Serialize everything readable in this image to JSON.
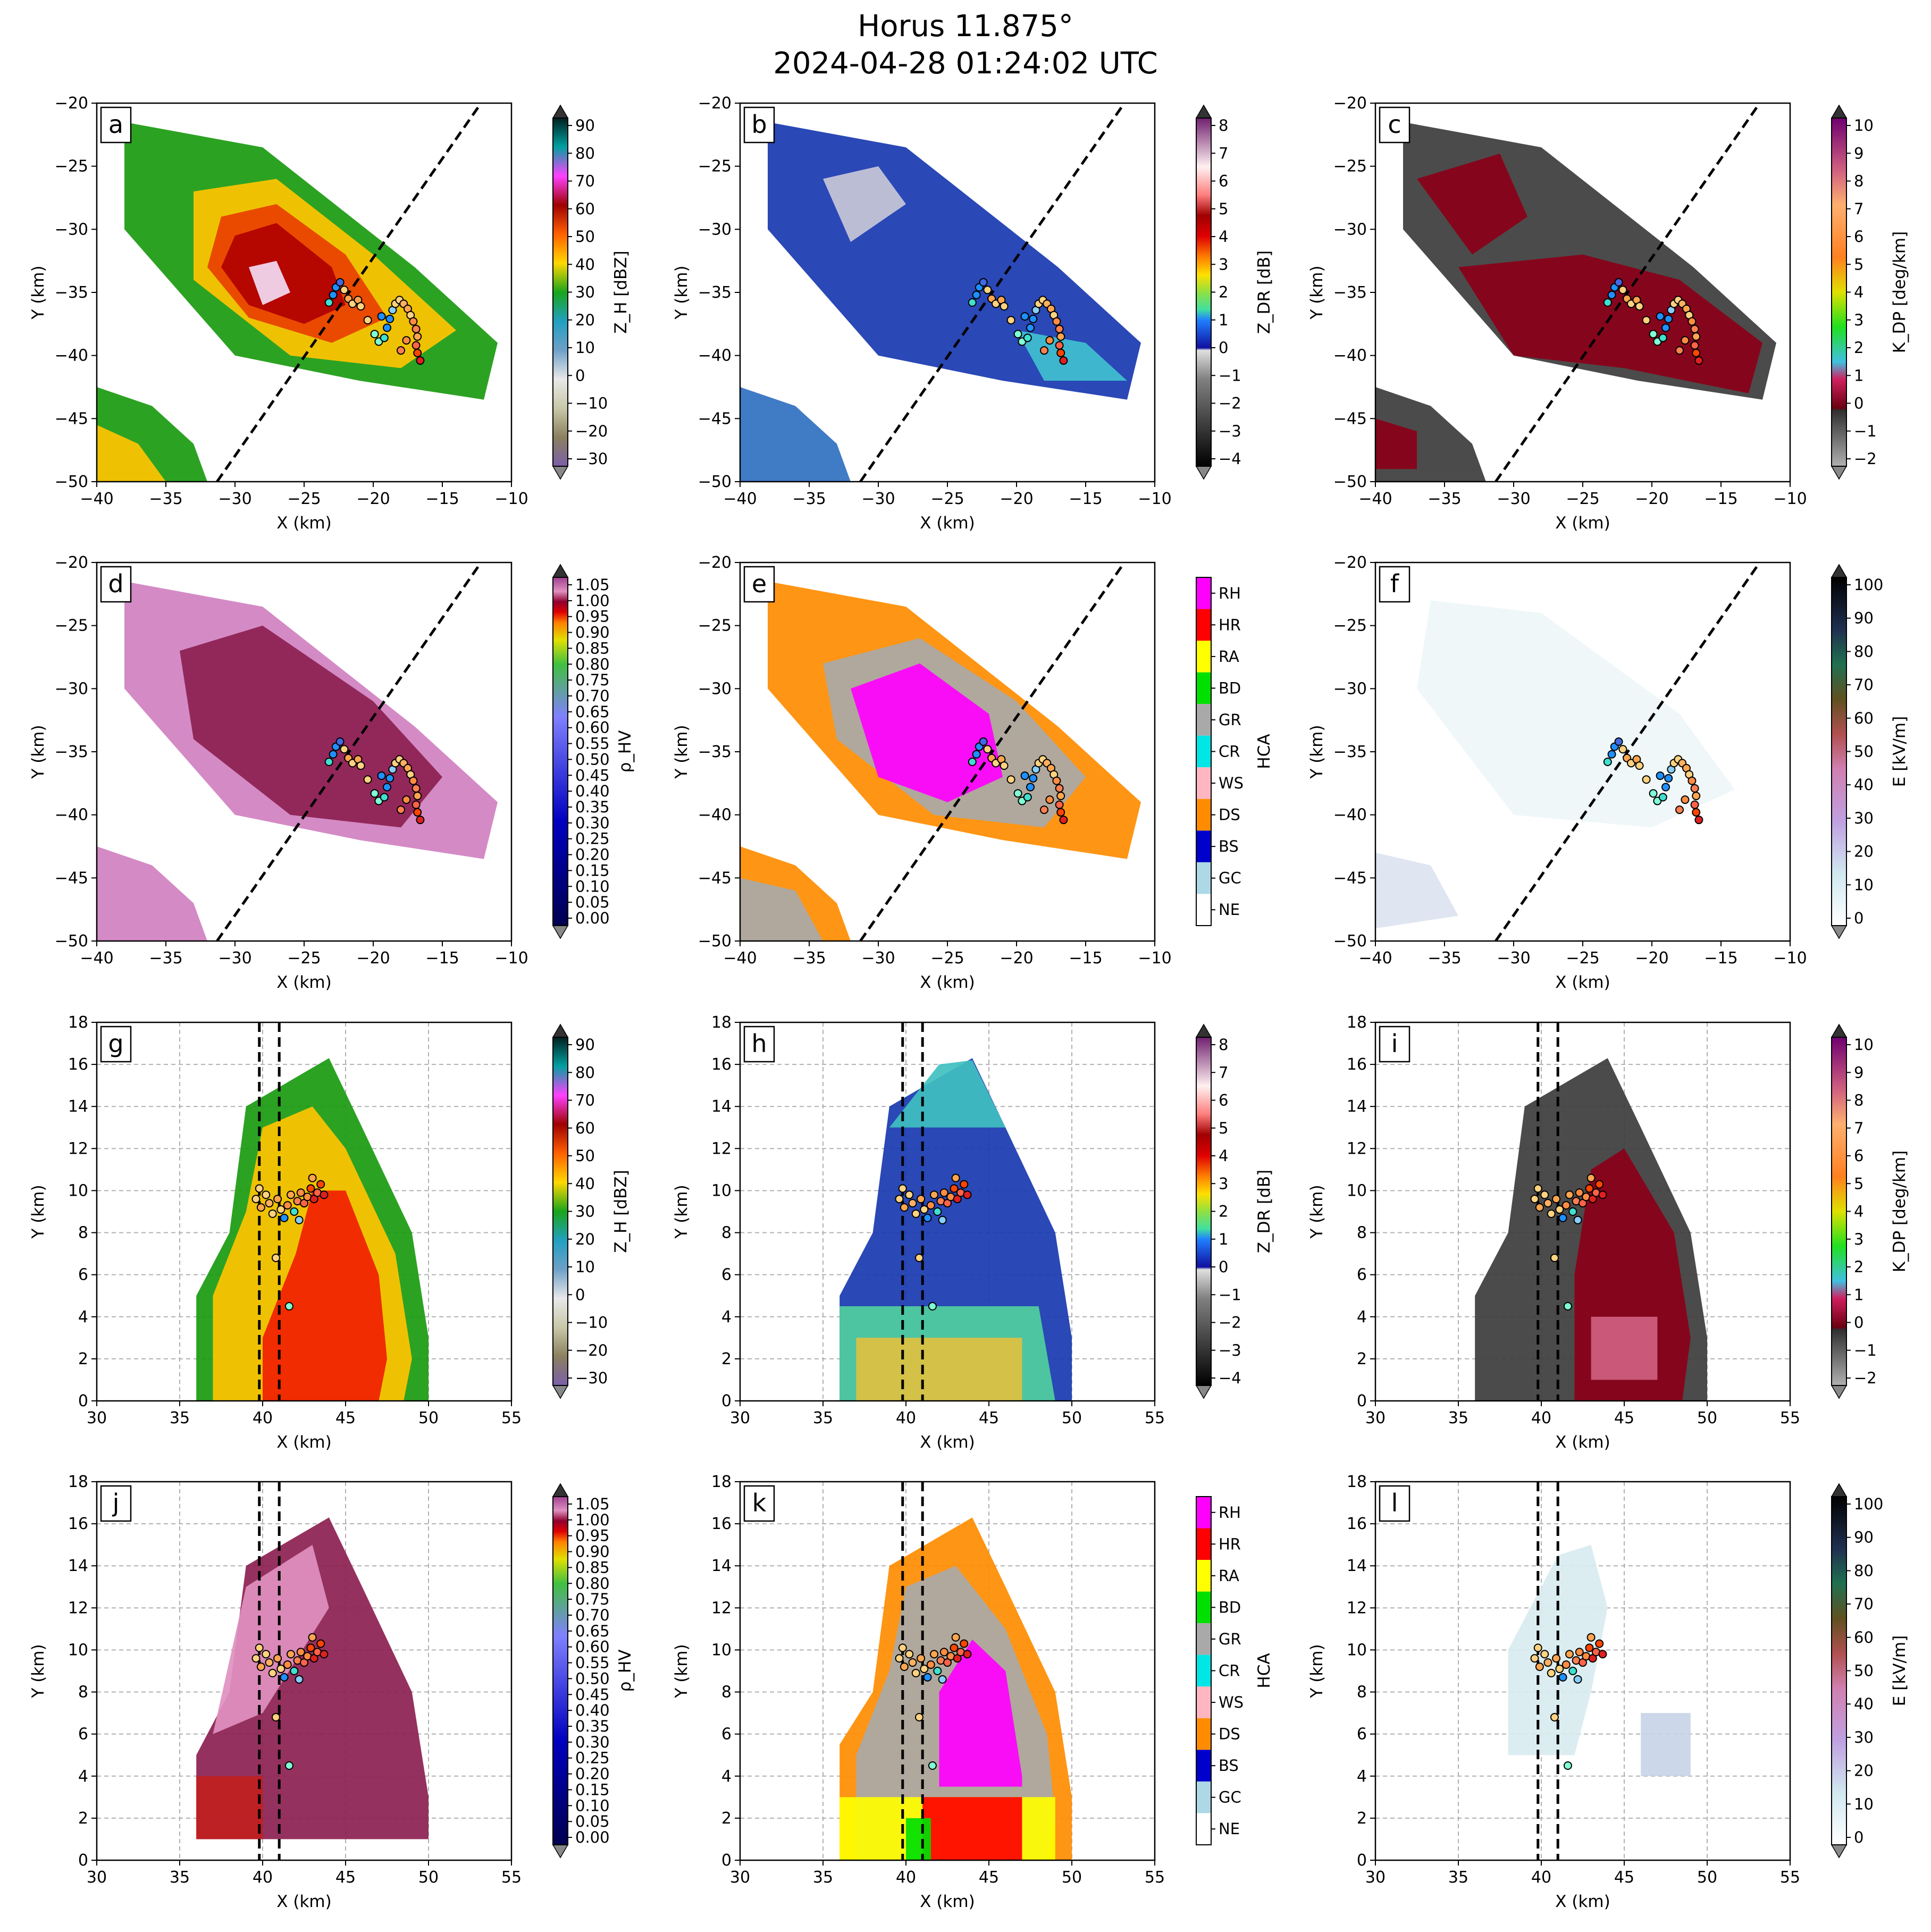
{
  "title_line1": "Horus 11.875°",
  "title_line2": "2024-04-28 01:24:02 UTC",
  "colorbars": {
    "ZH": {
      "label": "Z_H [dBZ]",
      "ticks": [
        "90",
        "80",
        "70",
        "60",
        "50",
        "40",
        "30",
        "20",
        "10",
        "0",
        "−10",
        "−20",
        "−30"
      ],
      "range": [
        -30,
        90
      ]
    },
    "ZDR": {
      "label": "Z_DR [dB]",
      "ticks": [
        "8",
        "7",
        "6",
        "5",
        "4",
        "3",
        "2",
        "1",
        "0",
        "−1",
        "−2",
        "−3",
        "−4"
      ],
      "range": [
        -4,
        8
      ]
    },
    "KDP": {
      "label": "K_DP [deg/km]",
      "ticks": [
        "10",
        "9",
        "8",
        "7",
        "6",
        "5",
        "4",
        "3",
        "2",
        "1",
        "0",
        "−1",
        "−2"
      ],
      "range": [
        -2,
        10
      ]
    },
    "RHO": {
      "label": "ρ_HV",
      "ticks": [
        "1.05",
        "1.00",
        "0.95",
        "0.90",
        "0.85",
        "0.80",
        "0.75",
        "0.70",
        "0.65",
        "0.60",
        "0.55",
        "0.50",
        "0.45",
        "0.40",
        "0.35",
        "0.30",
        "0.25",
        "0.20",
        "0.15",
        "0.10",
        "0.05",
        "0.00"
      ],
      "range": [
        0,
        1.05
      ]
    },
    "HCA": {
      "label": "HCA",
      "ticks": [
        "RH",
        "HR",
        "RA",
        "BD",
        "GR",
        "CR",
        "WS",
        "DS",
        "BS",
        "GC",
        "NE"
      ],
      "colors": [
        "#ff00ff",
        "#ff0000",
        "#ffff00",
        "#00e000",
        "#a9a9a9",
        "#00e5e5",
        "#ffb6c1",
        "#ff8c00",
        "#0000cd",
        "#add8e6",
        "#ffffff"
      ]
    },
    "E": {
      "label": "E [kV/m]",
      "ticks": [
        "100",
        "90",
        "80",
        "70",
        "60",
        "50",
        "40",
        "30",
        "20",
        "10",
        "0"
      ],
      "range": [
        0,
        100
      ]
    }
  },
  "chart_data": [
    {
      "panel": "a",
      "type": "heatmap",
      "field": "ZH",
      "view": "plan",
      "xlabel": "X (km)",
      "ylabel": "Y (km)",
      "xlim": [
        -40,
        -10
      ],
      "ylim": [
        -50,
        -20
      ],
      "xticks": [
        "−40",
        "−35",
        "−30",
        "−25",
        "−20",
        "−15",
        "−10"
      ],
      "yticks": [
        "−50",
        "−45",
        "−40",
        "−35",
        "−30",
        "−25",
        "−20"
      ],
      "grid": false
    },
    {
      "panel": "b",
      "type": "heatmap",
      "field": "ZDR",
      "view": "plan",
      "xlabel": "X (km)",
      "ylabel": "Y (km)",
      "xlim": [
        -40,
        -10
      ],
      "ylim": [
        -50,
        -20
      ],
      "xticks": [
        "−40",
        "−35",
        "−30",
        "−25",
        "−20",
        "−15",
        "−10"
      ],
      "yticks": [
        "−50",
        "−45",
        "−40",
        "−35",
        "−30",
        "−25",
        "−20"
      ],
      "grid": false
    },
    {
      "panel": "c",
      "type": "heatmap",
      "field": "KDP",
      "view": "plan",
      "xlabel": "X (km)",
      "ylabel": "Y (km)",
      "xlim": [
        -40,
        -10
      ],
      "ylim": [
        -50,
        -20
      ],
      "xticks": [
        "−40",
        "−35",
        "−30",
        "−25",
        "−20",
        "−15",
        "−10"
      ],
      "yticks": [
        "−50",
        "−45",
        "−40",
        "−35",
        "−30",
        "−25",
        "−20"
      ],
      "grid": false
    },
    {
      "panel": "d",
      "type": "heatmap",
      "field": "RHO",
      "view": "plan",
      "xlabel": "X (km)",
      "ylabel": "Y (km)",
      "xlim": [
        -40,
        -10
      ],
      "ylim": [
        -50,
        -20
      ],
      "xticks": [
        "−40",
        "−35",
        "−30",
        "−25",
        "−20",
        "−15",
        "−10"
      ],
      "yticks": [
        "−50",
        "−45",
        "−40",
        "−35",
        "−30",
        "−25",
        "−20"
      ],
      "grid": false
    },
    {
      "panel": "e",
      "type": "heatmap",
      "field": "HCA",
      "view": "plan",
      "xlabel": "X (km)",
      "ylabel": "Y (km)",
      "xlim": [
        -40,
        -10
      ],
      "ylim": [
        -50,
        -20
      ],
      "xticks": [
        "−40",
        "−35",
        "−30",
        "−25",
        "−20",
        "−15",
        "−10"
      ],
      "yticks": [
        "−50",
        "−45",
        "−40",
        "−35",
        "−30",
        "−25",
        "−20"
      ],
      "grid": false
    },
    {
      "panel": "f",
      "type": "heatmap",
      "field": "E",
      "view": "plan",
      "xlabel": "X (km)",
      "ylabel": "Y (km)",
      "xlim": [
        -40,
        -10
      ],
      "ylim": [
        -50,
        -20
      ],
      "xticks": [
        "−40",
        "−35",
        "−30",
        "−25",
        "−20",
        "−15",
        "−10"
      ],
      "yticks": [
        "−50",
        "−45",
        "−40",
        "−35",
        "−30",
        "−25",
        "−20"
      ],
      "grid": false
    },
    {
      "panel": "g",
      "type": "heatmap",
      "field": "ZH",
      "view": "section",
      "xlabel": "X (km)",
      "ylabel": "Y (km)",
      "xlim": [
        30,
        55
      ],
      "ylim": [
        0,
        18
      ],
      "xticks": [
        "30",
        "35",
        "40",
        "45",
        "50",
        "55"
      ],
      "yticks": [
        "0",
        "2",
        "4",
        "6",
        "8",
        "10",
        "12",
        "14",
        "16",
        "18"
      ],
      "grid": true
    },
    {
      "panel": "h",
      "type": "heatmap",
      "field": "ZDR",
      "view": "section",
      "xlabel": "X (km)",
      "ylabel": "Y (km)",
      "xlim": [
        30,
        55
      ],
      "ylim": [
        0,
        18
      ],
      "xticks": [
        "30",
        "35",
        "40",
        "45",
        "50",
        "55"
      ],
      "yticks": [
        "0",
        "2",
        "4",
        "6",
        "8",
        "10",
        "12",
        "14",
        "16",
        "18"
      ],
      "grid": true
    },
    {
      "panel": "i",
      "type": "heatmap",
      "field": "KDP",
      "view": "section",
      "xlabel": "X (km)",
      "ylabel": "Y (km)",
      "xlim": [
        30,
        55
      ],
      "ylim": [
        0,
        18
      ],
      "xticks": [
        "30",
        "35",
        "40",
        "45",
        "50",
        "55"
      ],
      "yticks": [
        "0",
        "2",
        "4",
        "6",
        "8",
        "10",
        "12",
        "14",
        "16",
        "18"
      ],
      "grid": true
    },
    {
      "panel": "j",
      "type": "heatmap",
      "field": "RHO",
      "view": "section",
      "xlabel": "X (km)",
      "ylabel": "Y (km)",
      "xlim": [
        30,
        55
      ],
      "ylim": [
        0,
        18
      ],
      "xticks": [
        "30",
        "35",
        "40",
        "45",
        "50",
        "55"
      ],
      "yticks": [
        "0",
        "2",
        "4",
        "6",
        "8",
        "10",
        "12",
        "14",
        "16",
        "18"
      ],
      "grid": true
    },
    {
      "panel": "k",
      "type": "heatmap",
      "field": "HCA",
      "view": "section",
      "xlabel": "X (km)",
      "ylabel": "Y (km)",
      "xlim": [
        30,
        55
      ],
      "ylim": [
        0,
        18
      ],
      "xticks": [
        "30",
        "35",
        "40",
        "45",
        "50",
        "55"
      ],
      "yticks": [
        "0",
        "2",
        "4",
        "6",
        "8",
        "10",
        "12",
        "14",
        "16",
        "18"
      ],
      "grid": true
    },
    {
      "panel": "l",
      "type": "heatmap",
      "field": "E",
      "view": "section",
      "xlabel": "X (km)",
      "ylabel": "Y (km)",
      "xlim": [
        30,
        55
      ],
      "ylim": [
        0,
        18
      ],
      "xticks": [
        "30",
        "35",
        "40",
        "45",
        "50",
        "55"
      ],
      "yticks": [
        "0",
        "2",
        "4",
        "6",
        "8",
        "10",
        "12",
        "14",
        "16",
        "18"
      ],
      "grid": true
    }
  ],
  "dashed_line_plan": [
    [
      -31.3,
      -50
    ],
    [
      -12.2,
      -20
    ]
  ],
  "dashed_lines_section_x": [
    39.8,
    41.0
  ],
  "lightning_plan": [
    {
      "x": -23.2,
      "y": -35.8,
      "c": "#40e0d0"
    },
    {
      "x": -22.9,
      "y": -35.2,
      "c": "#1e90ff"
    },
    {
      "x": -22.7,
      "y": -34.6,
      "c": "#1e90ff"
    },
    {
      "x": -22.4,
      "y": -34.2,
      "c": "#4169e1"
    },
    {
      "x": -22.1,
      "y": -34.8,
      "c": "#ffd27f"
    },
    {
      "x": -21.8,
      "y": -35.5,
      "c": "#ffa54f"
    },
    {
      "x": -21.5,
      "y": -35.9,
      "c": "#ffd27f"
    },
    {
      "x": -21.1,
      "y": -35.6,
      "c": "#ffa54f"
    },
    {
      "x": -20.4,
      "y": -37.2,
      "c": "#ffd27f"
    },
    {
      "x": -19.9,
      "y": -38.3,
      "c": "#7fffd4"
    },
    {
      "x": -19.6,
      "y": -38.9,
      "c": "#7fffd4"
    },
    {
      "x": -19.2,
      "y": -38.6,
      "c": "#40e0d0"
    },
    {
      "x": -19.0,
      "y": -37.8,
      "c": "#1e90ff"
    },
    {
      "x": -18.8,
      "y": -37.1,
      "c": "#1e90ff"
    },
    {
      "x": -18.6,
      "y": -36.4,
      "c": "#87cefa"
    },
    {
      "x": -18.4,
      "y": -35.9,
      "c": "#ffd27f"
    },
    {
      "x": -18.1,
      "y": -35.6,
      "c": "#ffd27f"
    },
    {
      "x": -17.8,
      "y": -35.9,
      "c": "#ffb060"
    },
    {
      "x": -17.5,
      "y": -36.3,
      "c": "#ffa54f"
    },
    {
      "x": -17.3,
      "y": -36.8,
      "c": "#ffd27f"
    },
    {
      "x": -17.1,
      "y": -37.3,
      "c": "#ff8c42"
    },
    {
      "x": -16.9,
      "y": -37.9,
      "c": "#ff7f50"
    },
    {
      "x": -16.8,
      "y": -38.5,
      "c": "#ffa54f"
    },
    {
      "x": -16.9,
      "y": -39.2,
      "c": "#ff6347"
    },
    {
      "x": -16.8,
      "y": -39.8,
      "c": "#ff4500"
    },
    {
      "x": -16.6,
      "y": -40.4,
      "c": "#e02020"
    },
    {
      "x": -18.0,
      "y": -39.6,
      "c": "#ff7f50"
    },
    {
      "x": -17.6,
      "y": -38.8,
      "c": "#ff8c42"
    },
    {
      "x": -20.9,
      "y": -36.1,
      "c": "#ffd27f"
    },
    {
      "x": -19.4,
      "y": -36.9,
      "c": "#1e90ff"
    }
  ],
  "lightning_section": [
    {
      "x": 39.6,
      "y": 9.6,
      "c": "#ffd27f"
    },
    {
      "x": 39.9,
      "y": 9.2,
      "c": "#ffa54f"
    },
    {
      "x": 40.2,
      "y": 9.8,
      "c": "#ffd27f"
    },
    {
      "x": 40.4,
      "y": 9.4,
      "c": "#ffb060"
    },
    {
      "x": 40.6,
      "y": 8.9,
      "c": "#ffd27f"
    },
    {
      "x": 40.9,
      "y": 9.6,
      "c": "#ffa54f"
    },
    {
      "x": 41.1,
      "y": 9.1,
      "c": "#ffd27f"
    },
    {
      "x": 41.3,
      "y": 8.7,
      "c": "#1e90ff"
    },
    {
      "x": 41.5,
      "y": 9.3,
      "c": "#ff8c42"
    },
    {
      "x": 41.7,
      "y": 9.8,
      "c": "#ffa54f"
    },
    {
      "x": 41.9,
      "y": 9.0,
      "c": "#40e0d0"
    },
    {
      "x": 42.1,
      "y": 9.5,
      "c": "#ff7f50"
    },
    {
      "x": 42.3,
      "y": 9.9,
      "c": "#ff8c42"
    },
    {
      "x": 42.5,
      "y": 9.4,
      "c": "#ff6347"
    },
    {
      "x": 42.7,
      "y": 9.7,
      "c": "#ff8c42"
    },
    {
      "x": 42.9,
      "y": 10.1,
      "c": "#ff4500"
    },
    {
      "x": 43.1,
      "y": 9.6,
      "c": "#e02020"
    },
    {
      "x": 43.3,
      "y": 9.9,
      "c": "#ff6347"
    },
    {
      "x": 43.5,
      "y": 10.3,
      "c": "#ff4500"
    },
    {
      "x": 43.7,
      "y": 9.8,
      "c": "#e02020"
    },
    {
      "x": 40.8,
      "y": 6.8,
      "c": "#ffd27f"
    },
    {
      "x": 41.6,
      "y": 4.5,
      "c": "#7fffd4"
    },
    {
      "x": 42.2,
      "y": 8.6,
      "c": "#87cefa"
    },
    {
      "x": 43.0,
      "y": 10.6,
      "c": "#ffa54f"
    },
    {
      "x": 39.8,
      "y": 10.1,
      "c": "#ffd27f"
    }
  ]
}
